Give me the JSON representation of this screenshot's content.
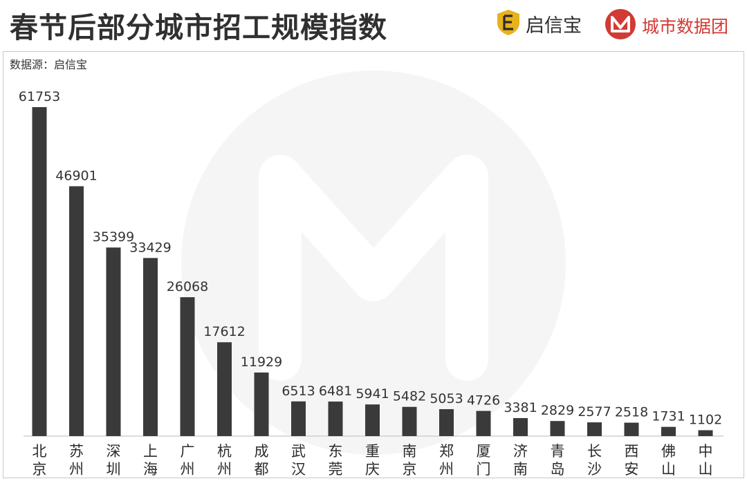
{
  "header": {
    "title": "春节后部分城市招工规模指数",
    "brand_a": "启信宝",
    "brand_b": "城市数据团"
  },
  "source_label": "数据源：启信宝",
  "colors": {
    "bar": "#3a3a3a",
    "brand_red": "#d23a34",
    "brand_gold": "#e8b21a",
    "watermark": "#f4f4f4"
  },
  "chart_data": {
    "type": "bar",
    "title": "春节后部分城市招工规模指数",
    "xlabel": "",
    "ylabel": "",
    "categories": [
      "北京",
      "苏州",
      "深圳",
      "上海",
      "广州",
      "杭州",
      "成都",
      "武汉",
      "东莞",
      "重庆",
      "南京",
      "郑州",
      "厦门",
      "济南",
      "青岛",
      "长沙",
      "西安",
      "佛山",
      "中山"
    ],
    "values": [
      61753,
      46901,
      35399,
      33429,
      26068,
      17612,
      11929,
      6513,
      6481,
      5941,
      5482,
      5053,
      4726,
      3381,
      2829,
      2577,
      2518,
      1731,
      1102
    ],
    "ylim": [
      0,
      61753
    ],
    "grid": false,
    "legend": "none"
  }
}
